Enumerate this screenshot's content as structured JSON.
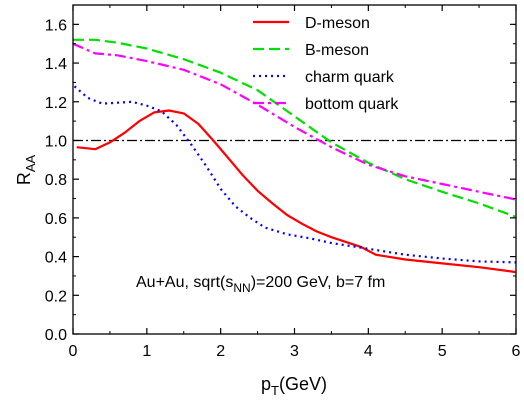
{
  "chart_data": {
    "type": "line",
    "xlabel_main": "p",
    "xlabel_sub": "T",
    "xlabel_unit": "(GeV)",
    "ylabel_main": "R",
    "ylabel_sub": "AA",
    "xlim": [
      0,
      6
    ],
    "ylim": [
      0,
      1.7
    ],
    "x_ticks": [
      0,
      1,
      2,
      3,
      4,
      5,
      6
    ],
    "x_tick_labels": [
      "0",
      "1",
      "2",
      "3",
      "4",
      "5",
      "6"
    ],
    "y_ticks": [
      0,
      0.2,
      0.4,
      0.6,
      0.8,
      1.0,
      1.2,
      1.4,
      1.6
    ],
    "y_tick_labels": [
      "0.0",
      "0.2",
      "0.4",
      "0.6",
      "0.8",
      "1.0",
      "1.2",
      "1.4",
      "1.6"
    ],
    "grid": false,
    "legend_position": "top-right",
    "reference_line": {
      "y": 1.0,
      "style": "dash-dot",
      "color": "#000000"
    },
    "annotation": {
      "prefix": "Au+Au, sqrt(s",
      "sub": "NN",
      "suffix": ")=200 GeV, b=7 fm"
    },
    "series": [
      {
        "name": "D-meson",
        "color": "#ff0000",
        "dash": "solid",
        "points": [
          [
            0.05,
            0.965
          ],
          [
            0.3,
            0.955
          ],
          [
            0.5,
            0.99
          ],
          [
            0.7,
            1.04
          ],
          [
            0.9,
            1.1
          ],
          [
            1.1,
            1.145
          ],
          [
            1.3,
            1.155
          ],
          [
            1.5,
            1.14
          ],
          [
            1.7,
            1.085
          ],
          [
            1.9,
            1.0
          ],
          [
            2.1,
            0.91
          ],
          [
            2.3,
            0.82
          ],
          [
            2.5,
            0.74
          ],
          [
            2.7,
            0.675
          ],
          [
            2.9,
            0.615
          ],
          [
            3.1,
            0.57
          ],
          [
            3.3,
            0.53
          ],
          [
            3.5,
            0.5
          ],
          [
            3.7,
            0.475
          ],
          [
            3.9,
            0.45
          ],
          [
            4.1,
            0.41
          ],
          [
            4.5,
            0.385
          ],
          [
            5.0,
            0.365
          ],
          [
            5.5,
            0.345
          ],
          [
            6.0,
            0.32
          ]
        ]
      },
      {
        "name": "B-meson",
        "color": "#00e000",
        "dash": "dashed",
        "points": [
          [
            0.0,
            1.52
          ],
          [
            0.3,
            1.52
          ],
          [
            0.6,
            1.505
          ],
          [
            1.0,
            1.475
          ],
          [
            1.5,
            1.42
          ],
          [
            2.0,
            1.35
          ],
          [
            2.5,
            1.26
          ],
          [
            3.0,
            1.125
          ],
          [
            3.5,
            0.99
          ],
          [
            4.0,
            0.885
          ],
          [
            4.5,
            0.8
          ],
          [
            5.0,
            0.735
          ],
          [
            5.5,
            0.675
          ],
          [
            6.0,
            0.605
          ]
        ]
      },
      {
        "name": "charm quark",
        "color": "#0000ff",
        "dash": "dotted",
        "points": [
          [
            0.02,
            1.28
          ],
          [
            0.2,
            1.22
          ],
          [
            0.4,
            1.19
          ],
          [
            0.6,
            1.195
          ],
          [
            0.8,
            1.2
          ],
          [
            1.0,
            1.18
          ],
          [
            1.2,
            1.15
          ],
          [
            1.4,
            1.08
          ],
          [
            1.6,
            0.98
          ],
          [
            1.8,
            0.87
          ],
          [
            2.0,
            0.75
          ],
          [
            2.2,
            0.66
          ],
          [
            2.4,
            0.6
          ],
          [
            2.6,
            0.55
          ],
          [
            2.9,
            0.515
          ],
          [
            3.2,
            0.495
          ],
          [
            3.5,
            0.47
          ],
          [
            4.0,
            0.44
          ],
          [
            4.5,
            0.41
          ],
          [
            5.0,
            0.39
          ],
          [
            5.5,
            0.375
          ],
          [
            6.0,
            0.37
          ]
        ]
      },
      {
        "name": "bottom quark",
        "color": "#ff00ff",
        "dash": "dashdot",
        "points": [
          [
            0.0,
            1.5
          ],
          [
            0.3,
            1.45
          ],
          [
            0.6,
            1.44
          ],
          [
            1.0,
            1.41
          ],
          [
            1.5,
            1.365
          ],
          [
            2.0,
            1.29
          ],
          [
            2.5,
            1.185
          ],
          [
            3.0,
            1.07
          ],
          [
            3.5,
            0.965
          ],
          [
            4.0,
            0.875
          ],
          [
            4.5,
            0.815
          ],
          [
            5.0,
            0.775
          ],
          [
            5.5,
            0.735
          ],
          [
            6.0,
            0.695
          ]
        ]
      }
    ]
  }
}
